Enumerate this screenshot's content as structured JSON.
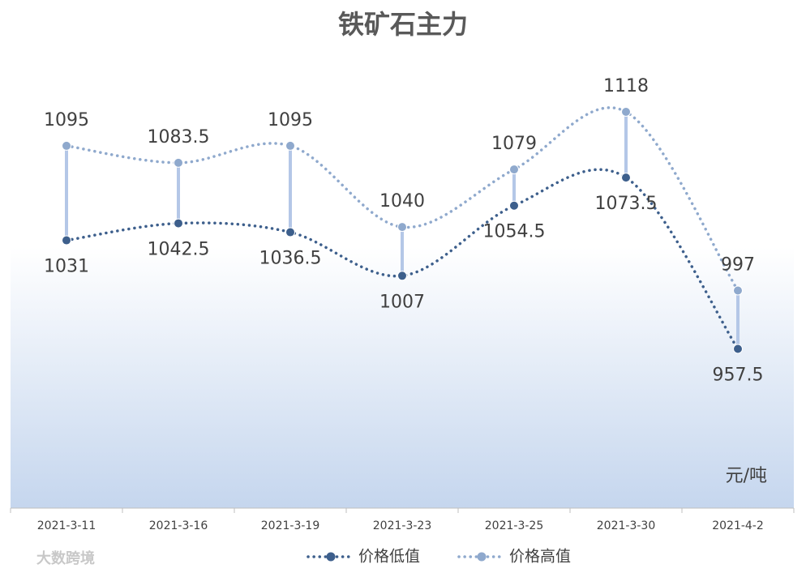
{
  "chart_data": {
    "type": "line",
    "title": "铁矿石主力",
    "unit_label": "元/吨",
    "watermark": "大数跨境",
    "categories": [
      "2021-3-11",
      "2021-3-16",
      "2021-3-19",
      "2021-3-23",
      "2021-3-25",
      "2021-3-30",
      "2021-4-2"
    ],
    "series": [
      {
        "name": "价格低值",
        "color": "#3d5f8c",
        "values": [
          1031,
          1042.5,
          1036.5,
          1007,
          1054.5,
          1073.5,
          957.5
        ]
      },
      {
        "name": "价格高值",
        "color": "#8fa9cd",
        "values": [
          1095,
          1083.5,
          1095,
          1040,
          1079,
          1118,
          997
        ]
      }
    ],
    "high_low_lines": true,
    "high_low_color": "#b4c7e7",
    "legend": "bottom"
  }
}
